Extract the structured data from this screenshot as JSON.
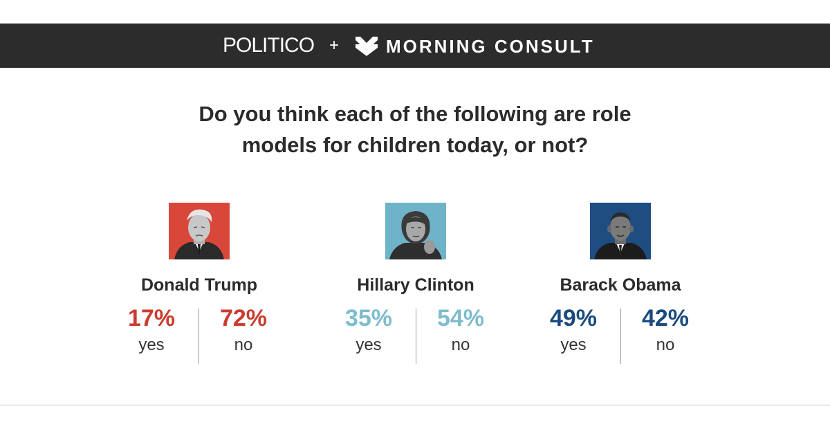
{
  "header": {
    "brand_left": "POLITICO",
    "plus": "+",
    "logo_icon": "morning-consult-chevron-icon",
    "brand_right": "MORNING CONSULT",
    "background_color": "#2c2c2c"
  },
  "question": {
    "line1": "Do you think each of the following are role",
    "line2": "models for children today, or not?"
  },
  "figures": [
    {
      "name": "Donald Trump",
      "portrait_icon": "trump-portrait-icon",
      "portrait_bg": "#d9473a",
      "color": "#cc3b2f",
      "yes_value": "17%",
      "no_value": "72%",
      "yes_label": "yes",
      "no_label": "no"
    },
    {
      "name": "Hillary Clinton",
      "portrait_icon": "clinton-portrait-icon",
      "portrait_bg": "#6fb3c8",
      "color": "#7dbccc",
      "yes_value": "35%",
      "no_value": "54%",
      "yes_label": "yes",
      "no_label": "no"
    },
    {
      "name": "Barack Obama",
      "portrait_icon": "obama-portrait-icon",
      "portrait_bg": "#1e4d82",
      "color": "#1a4a7e",
      "yes_value": "49%",
      "no_value": "42%",
      "yes_label": "yes",
      "no_label": "no"
    }
  ],
  "chart_data": {
    "type": "table",
    "title": "Do you think each of the following are role models for children today, or not?",
    "categories": [
      "Donald Trump",
      "Hillary Clinton",
      "Barack Obama"
    ],
    "series": [
      {
        "name": "yes",
        "values": [
          17,
          35,
          49
        ]
      },
      {
        "name": "no",
        "values": [
          72,
          54,
          42
        ]
      }
    ],
    "unit": "%"
  }
}
